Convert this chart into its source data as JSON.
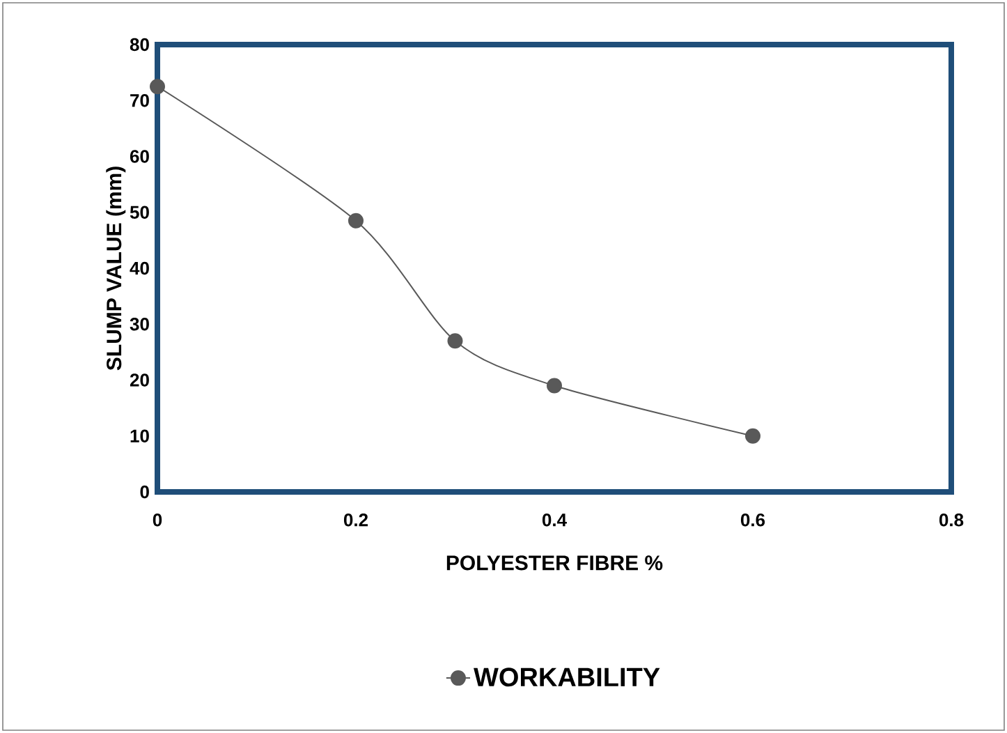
{
  "chart_data": {
    "type": "line",
    "xlabel": "POLYESTER  FIBRE %",
    "ylabel": "SLUMP VALUE (mm)",
    "x": [
      0,
      0.2,
      0.3,
      0.4,
      0.6
    ],
    "series": [
      {
        "name": "WORKABILITY",
        "color": "#595959",
        "values": [
          72.5,
          48.5,
          27,
          19,
          10
        ]
      }
    ],
    "xlim": [
      0,
      0.8
    ],
    "xticks": [
      0,
      0.2,
      0.4,
      0.6,
      0.8
    ],
    "ylim": [
      0,
      80
    ],
    "yticks": [
      0,
      10,
      20,
      30,
      40,
      50,
      60,
      70,
      80
    ],
    "marker": "circle",
    "line_style": "solid",
    "grid": false,
    "legend": "bottom"
  }
}
